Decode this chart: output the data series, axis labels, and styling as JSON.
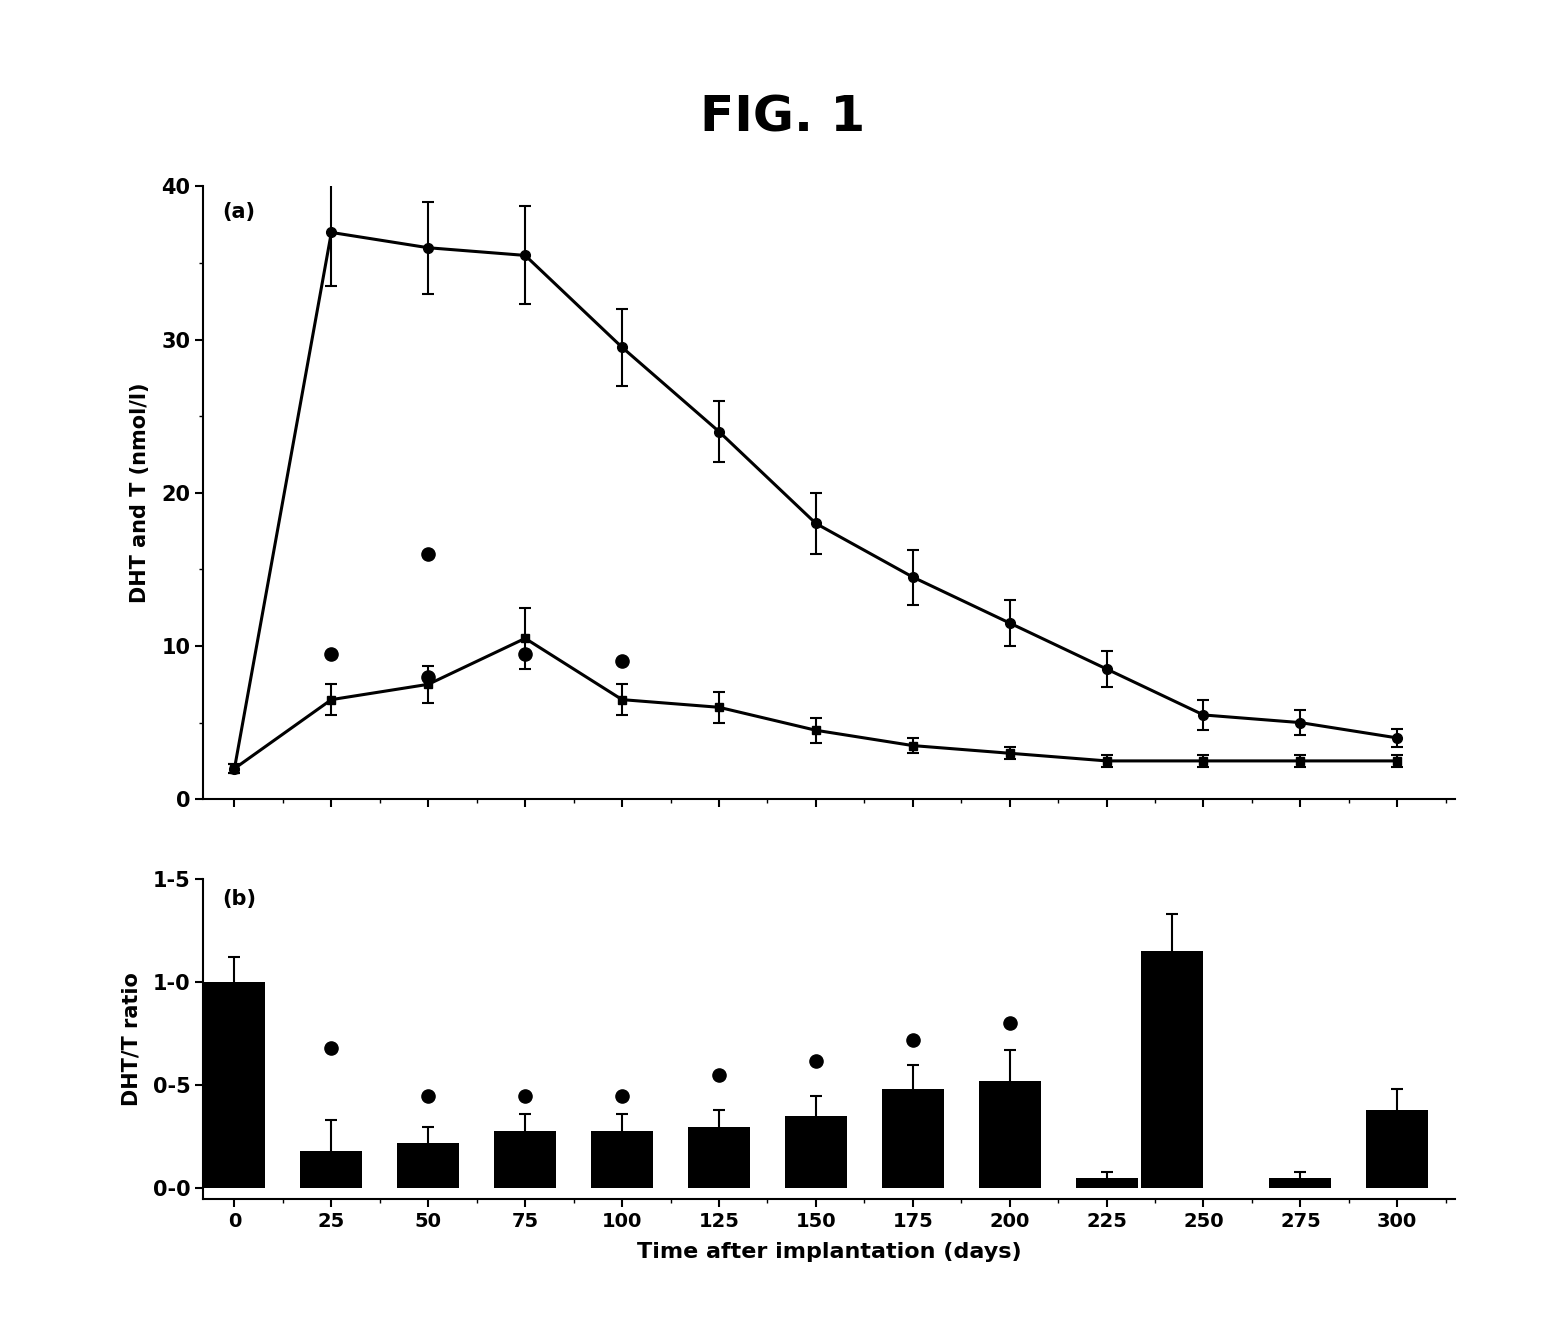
{
  "title": "FIG. 1",
  "fig_bg": "#ffffff",
  "panel_bg": "#ffffff",
  "panel_a": {
    "label": "(a)",
    "ylabel": "DHT and T (nmol/l)",
    "ylim": [
      0,
      40
    ],
    "yticks": [
      0,
      10,
      20,
      30,
      40
    ],
    "line1_x": [
      0,
      25,
      50,
      75,
      100,
      125,
      150,
      175,
      200,
      225,
      250,
      275,
      300
    ],
    "line1_y": [
      2.0,
      37.0,
      36.0,
      35.5,
      29.5,
      24.0,
      18.0,
      14.5,
      11.5,
      8.5,
      5.5,
      5.0,
      4.0
    ],
    "line1_yerr": [
      0.3,
      3.5,
      3.0,
      3.2,
      2.5,
      2.0,
      2.0,
      1.8,
      1.5,
      1.2,
      1.0,
      0.8,
      0.6
    ],
    "line2_x": [
      0,
      25,
      50,
      75,
      100,
      125,
      150,
      175,
      200,
      225,
      250,
      275,
      300
    ],
    "line2_y": [
      2.0,
      6.5,
      7.5,
      10.5,
      6.5,
      6.0,
      4.5,
      3.5,
      3.0,
      2.5,
      2.5,
      2.5,
      2.5
    ],
    "line2_yerr": [
      0.3,
      1.0,
      1.2,
      2.0,
      1.0,
      1.0,
      0.8,
      0.5,
      0.4,
      0.4,
      0.4,
      0.4,
      0.4
    ],
    "dot_x": [
      25,
      50,
      50,
      75,
      100
    ],
    "dot_y": [
      9.5,
      8.0,
      16.0,
      9.5,
      9.0
    ]
  },
  "panel_b": {
    "label": "(b)",
    "ylabel": "DHT/T ratio",
    "ylim": [
      -0.05,
      1.5
    ],
    "yticks": [
      0.0,
      0.5,
      1.0,
      1.5
    ],
    "ytick_labels": [
      "0-0",
      "0-5",
      "1-0",
      "1-5"
    ],
    "bar_x": [
      0,
      25,
      50,
      75,
      100,
      125,
      150,
      175,
      200,
      225,
      242,
      275,
      300
    ],
    "bar_height": [
      1.0,
      0.18,
      0.22,
      0.28,
      0.28,
      0.3,
      0.35,
      0.48,
      0.52,
      0.05,
      1.15,
      0.05,
      0.38
    ],
    "bar_yerr": [
      0.12,
      0.15,
      0.08,
      0.08,
      0.08,
      0.08,
      0.1,
      0.12,
      0.15,
      0.03,
      0.18,
      0.03,
      0.1
    ],
    "dot_x": [
      25,
      50,
      75,
      100,
      125,
      150,
      175,
      200
    ],
    "dot_y": [
      0.68,
      0.45,
      0.45,
      0.45,
      0.55,
      0.62,
      0.72,
      0.8
    ]
  },
  "xticks": [
    0,
    25,
    50,
    75,
    100,
    125,
    150,
    175,
    200,
    225,
    250,
    275,
    300
  ],
  "xlabel": "Time after implantation (days)",
  "line_color": "#000000",
  "bar_color": "#000000",
  "dot_color": "#000000",
  "line_width": 2.2,
  "marker_size": 7
}
